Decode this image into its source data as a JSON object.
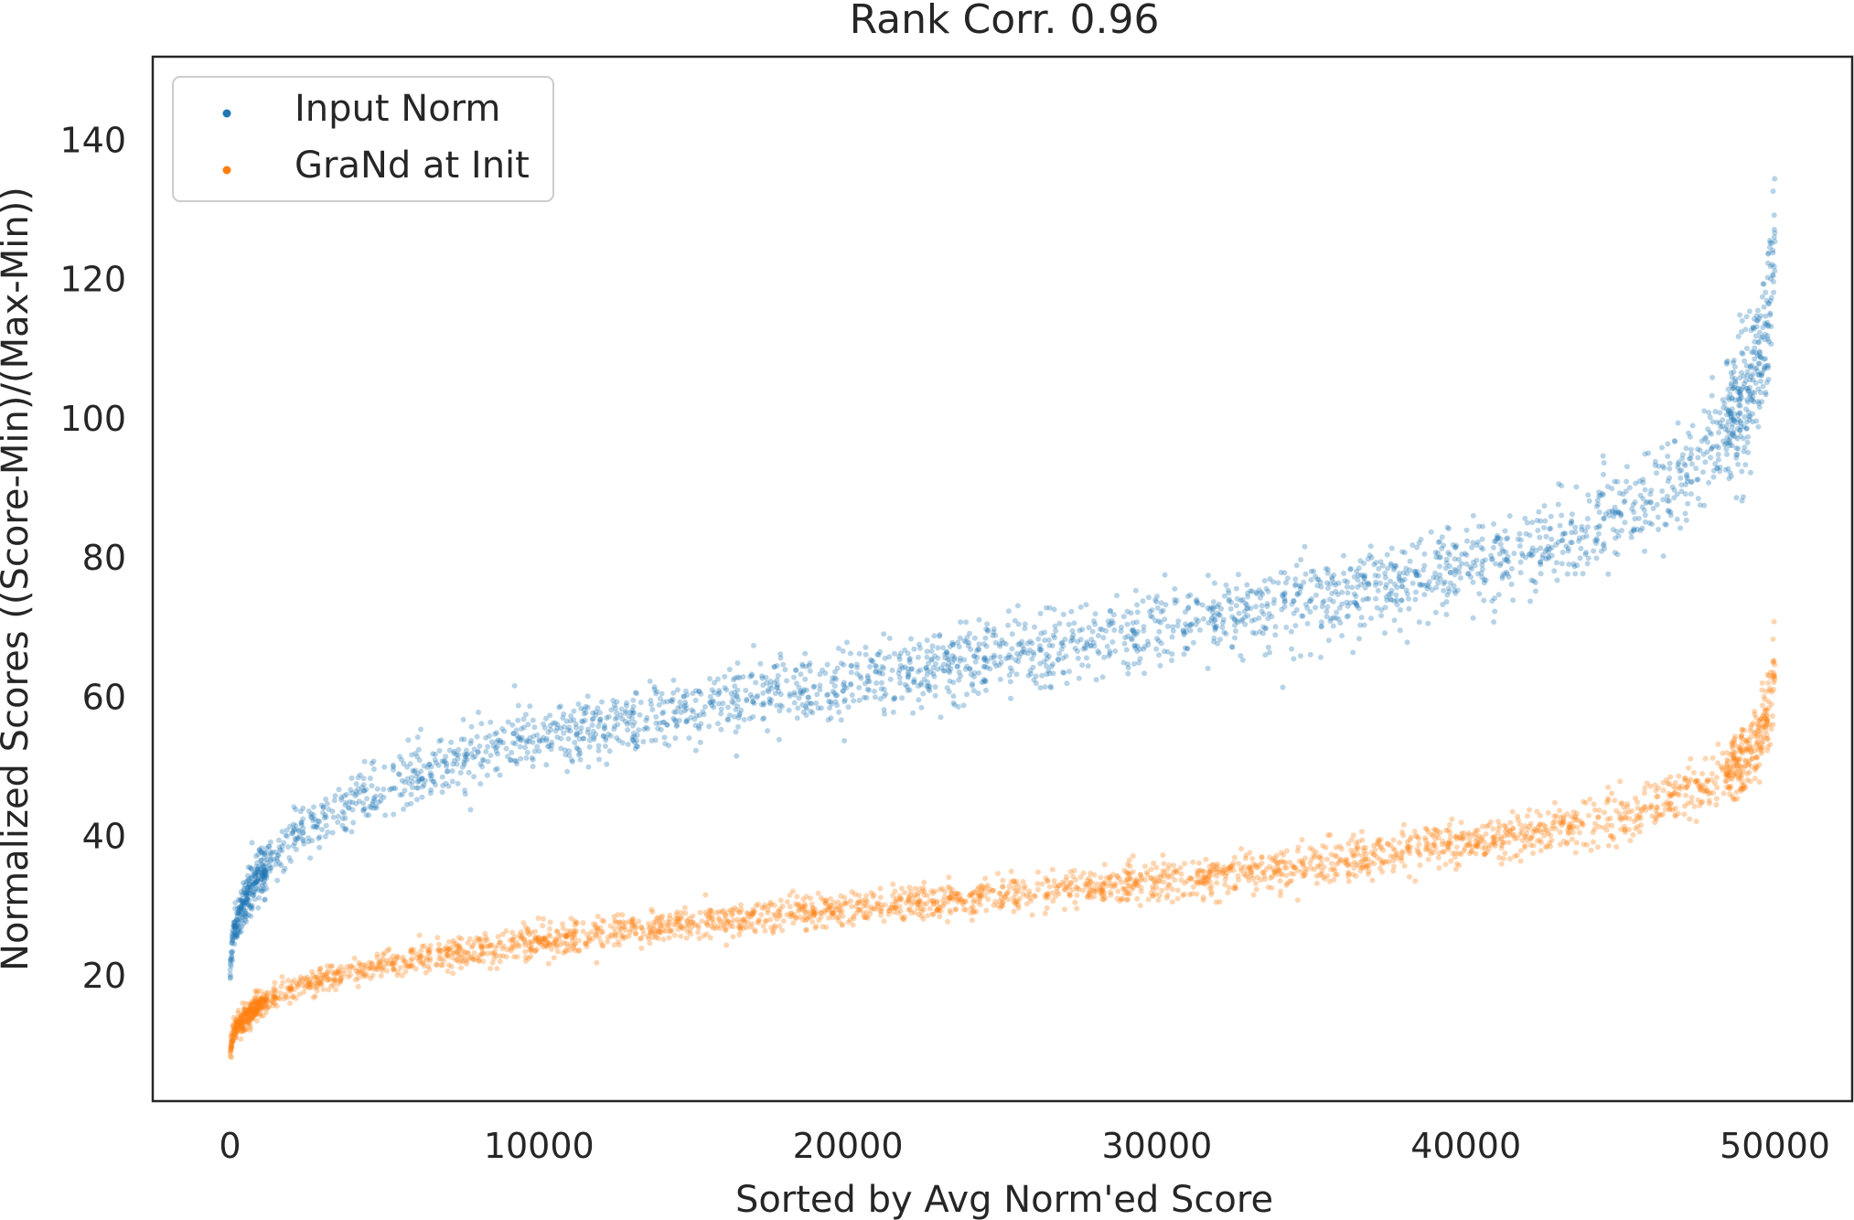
{
  "chart_data": {
    "type": "scatter",
    "title": "Rank Corr. 0.96",
    "xlabel": "Sorted by Avg Norm'ed Score",
    "ylabel": "Normalized Scores ((Score-Min)/(Max-Min))",
    "xlim": [
      -2500,
      52500
    ],
    "ylim": [
      2,
      152
    ],
    "xticks": [
      0,
      10000,
      20000,
      30000,
      40000,
      50000
    ],
    "yticks": [
      20,
      40,
      60,
      80,
      100,
      120,
      140
    ],
    "grid": false,
    "legend_position": "upper-left",
    "series": [
      {
        "name": "Input Norm",
        "color": "#1f77b4",
        "x": [
          0,
          100,
          500,
          1000,
          2000,
          3000,
          5000,
          7500,
          10000,
          15000,
          20000,
          25000,
          30000,
          35000,
          40000,
          44000,
          46000,
          48000,
          49000,
          49500,
          49900,
          50000
        ],
        "y": [
          21,
          26,
          31,
          35,
          40,
          43,
          47,
          51,
          54,
          58,
          62,
          66,
          70,
          74,
          79,
          84,
          88,
          96,
          103,
          108,
          118,
          128
        ],
        "spread": [
          1.5,
          2.5,
          3,
          3,
          3.5,
          3.5,
          4,
          4,
          4,
          4,
          4,
          4.5,
          4.5,
          5,
          5,
          5.5,
          6,
          7,
          8,
          9,
          10,
          10
        ]
      },
      {
        "name": "GraNd at Init",
        "color": "#ff7f0e",
        "x": [
          0,
          100,
          500,
          1000,
          2000,
          3000,
          5000,
          7500,
          10000,
          15000,
          20000,
          25000,
          30000,
          35000,
          40000,
          44000,
          46000,
          48000,
          49000,
          49500,
          49900,
          50000
        ],
        "y": [
          9,
          12,
          14,
          16,
          18,
          19.5,
          21.5,
          23.5,
          25,
          27.5,
          29.5,
          31.5,
          33.5,
          36,
          39,
          42,
          44,
          48,
          51,
          54,
          60,
          65
        ],
        "spread": [
          1,
          1.5,
          1.5,
          1.5,
          1.5,
          1.5,
          1.5,
          2,
          2,
          2,
          2,
          2.2,
          2.2,
          2.5,
          2.5,
          3,
          3,
          3.5,
          4,
          4.5,
          5,
          6
        ]
      }
    ]
  }
}
